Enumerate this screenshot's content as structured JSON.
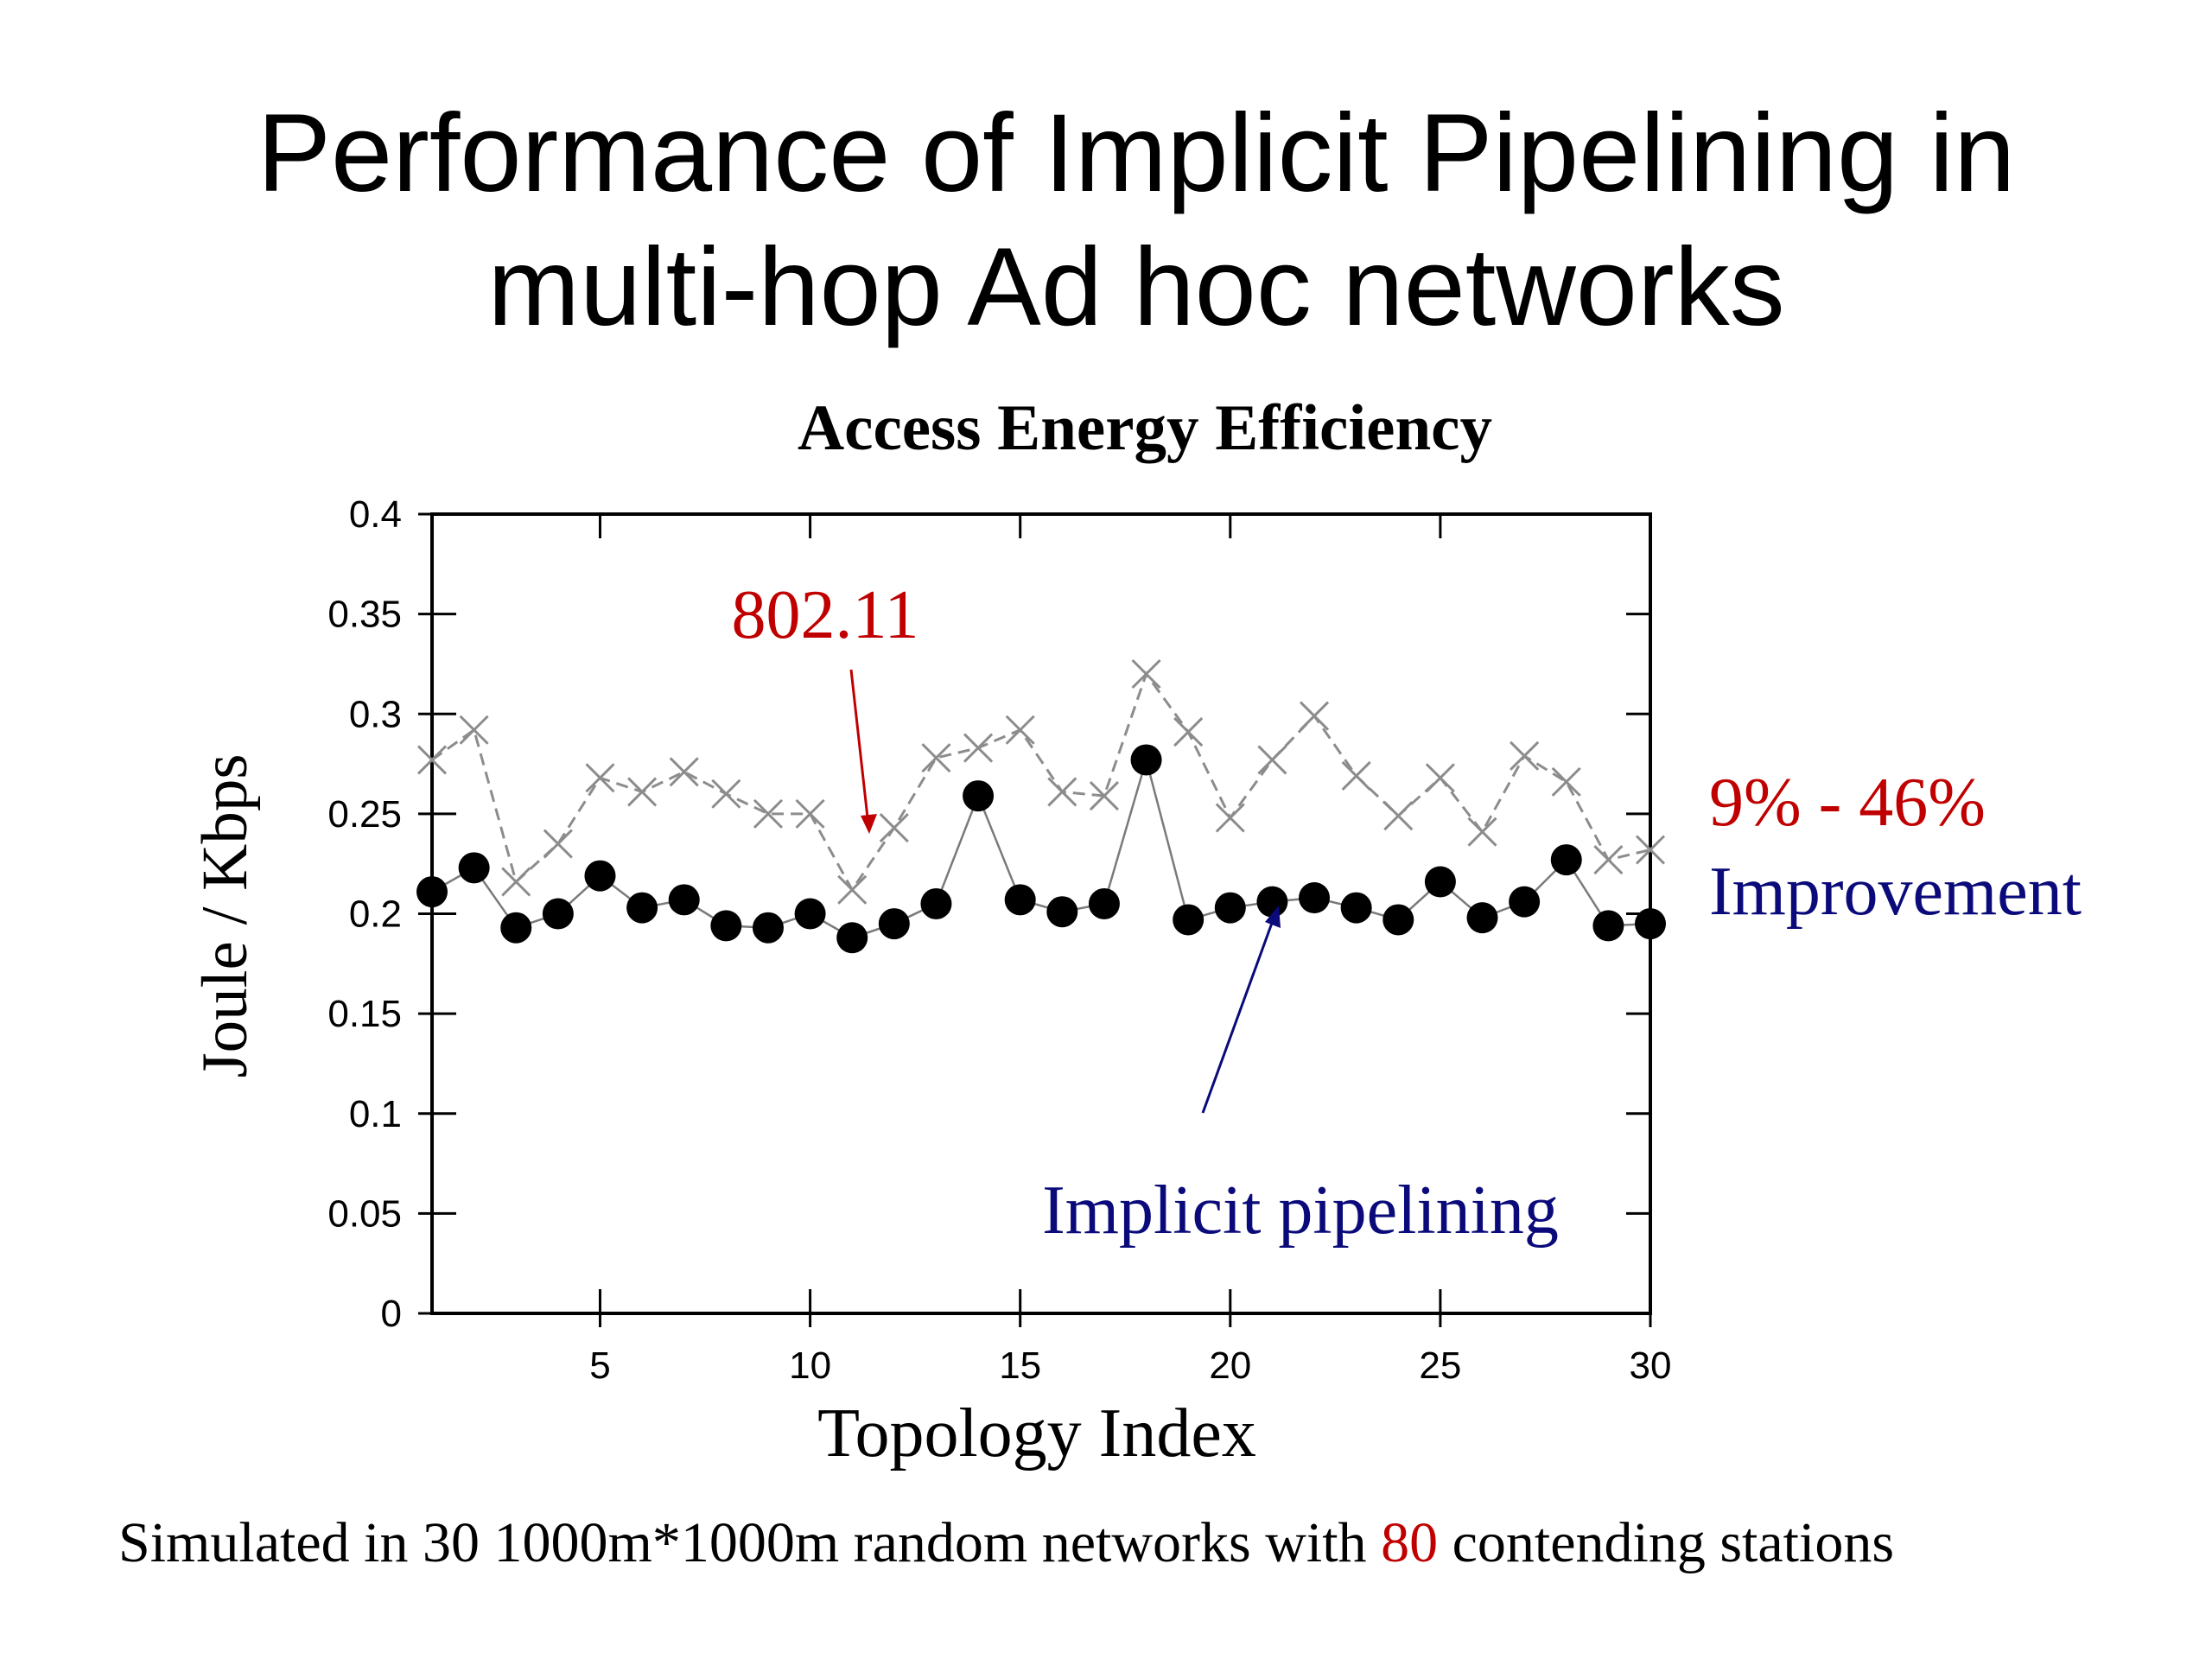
{
  "slide": {
    "title_line1": "Performance of Implicit Pipelining  in",
    "title_line2": "multi-hop Ad hoc networks"
  },
  "annotations": {
    "ieee_label": "802.11",
    "range": "9% - 46%",
    "improvement": "Improvement",
    "implicit_label": "Implicit pipelining"
  },
  "caption": {
    "before": "Simulated in 30 1000m*1000m random networks  with ",
    "highlight": "80",
    "after": " contending stations"
  },
  "colors": {
    "red": "#c00000",
    "blue": "#0a0a7a",
    "series_8021": "#8c8c8c",
    "series_implicit": "#000000"
  },
  "chart_data": {
    "type": "line",
    "title": "Access Energy Efficiency",
    "xlabel": "Topology Index",
    "ylabel": "Joule / Kbps",
    "xlim": [
      1,
      30
    ],
    "ylim": [
      0,
      0.4
    ],
    "xticks": [
      5,
      10,
      15,
      20,
      25,
      30
    ],
    "yticks": [
      0,
      0.05,
      0.1,
      0.15,
      0.2,
      0.25,
      0.3,
      0.35,
      0.4
    ],
    "ytick_labels": [
      "0",
      "0.05",
      "0.1",
      "0.15",
      "0.2",
      "0.25",
      "0.3",
      "0.35",
      "0.4"
    ],
    "grid": false,
    "x": [
      1,
      2,
      3,
      4,
      5,
      6,
      7,
      8,
      9,
      10,
      11,
      12,
      13,
      14,
      15,
      16,
      17,
      18,
      19,
      20,
      21,
      22,
      23,
      24,
      25,
      26,
      27,
      28,
      29,
      30
    ],
    "series": [
      {
        "name": "802.11",
        "marker": "x",
        "line": "dashed",
        "values": [
          0.277,
          0.292,
          0.216,
          0.235,
          0.268,
          0.261,
          0.271,
          0.26,
          0.25,
          0.25,
          0.212,
          0.243,
          0.278,
          0.283,
          0.292,
          0.261,
          0.259,
          0.32,
          0.291,
          0.248,
          0.277,
          0.299,
          0.269,
          0.249,
          0.268,
          0.241,
          0.279,
          0.266,
          0.227,
          0.232
        ]
      },
      {
        "name": "Implicit pipelining",
        "marker": "filled-circle",
        "line": "solid",
        "values": [
          0.211,
          0.223,
          0.193,
          0.2,
          0.219,
          0.203,
          0.207,
          0.194,
          0.193,
          0.2,
          0.188,
          0.195,
          0.205,
          0.259,
          0.207,
          0.201,
          0.205,
          0.277,
          0.197,
          0.203,
          0.206,
          0.208,
          0.203,
          0.197,
          0.216,
          0.198,
          0.206,
          0.227,
          0.194,
          0.195
        ]
      }
    ]
  }
}
